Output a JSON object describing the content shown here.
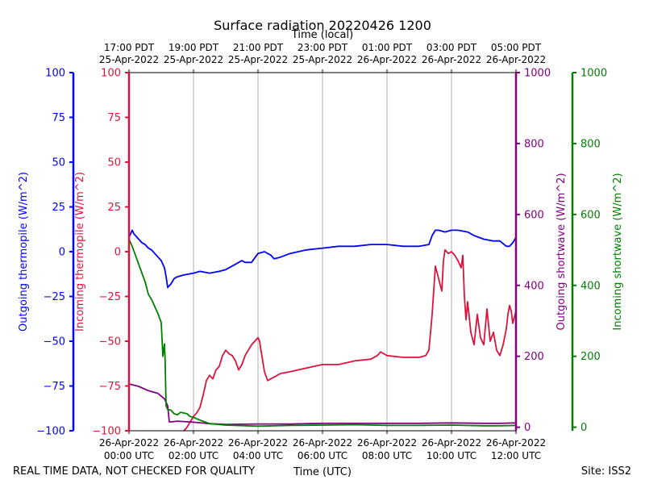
{
  "chart_data": {
    "type": "line",
    "title": "Surface radiation 20220426 1200",
    "top_axis_label": "Time (local)",
    "xlabel": "Time (UTC)",
    "footer_left": "REAL TIME DATA, NOT CHECKED FOR QUALITY",
    "footer_right": "Site: ISS2",
    "x_units": "hours since 2022-04-26 00:00 UTC",
    "xlim": [
      0,
      12
    ],
    "utc_ticks": [
      {
        "x": 0,
        "date": "26-Apr-2022",
        "time": "00:00 UTC"
      },
      {
        "x": 2,
        "date": "26-Apr-2022",
        "time": "02:00 UTC"
      },
      {
        "x": 4,
        "date": "26-Apr-2022",
        "time": "04:00 UTC"
      },
      {
        "x": 6,
        "date": "26-Apr-2022",
        "time": "06:00 UTC"
      },
      {
        "x": 8,
        "date": "26-Apr-2022",
        "time": "08:00 UTC"
      },
      {
        "x": 10,
        "date": "26-Apr-2022",
        "time": "10:00 UTC"
      },
      {
        "x": 12,
        "date": "26-Apr-2022",
        "time": "12:00 UTC"
      }
    ],
    "local_ticks": [
      {
        "x": 0,
        "time": "17:00 PDT",
        "date": "25-Apr-2022"
      },
      {
        "x": 2,
        "time": "19:00 PDT",
        "date": "25-Apr-2022"
      },
      {
        "x": 4,
        "time": "21:00 PDT",
        "date": "25-Apr-2022"
      },
      {
        "x": 6,
        "time": "23:00 PDT",
        "date": "25-Apr-2022"
      },
      {
        "x": 8,
        "time": "01:00 PDT",
        "date": "26-Apr-2022"
      },
      {
        "x": 10,
        "time": "03:00 PDT",
        "date": "26-Apr-2022"
      },
      {
        "x": 12,
        "time": "05:00 PDT",
        "date": "26-Apr-2022"
      }
    ],
    "vgrid": true,
    "axes": [
      {
        "id": "outgoing-thermopile",
        "label": "Outgoing thermopile (W/m^2)",
        "color": "#0000ff",
        "ylim": [
          -100,
          100
        ],
        "ticks": [
          -100,
          -75,
          -50,
          -25,
          0,
          25,
          50,
          75,
          100
        ],
        "side": "left-outer"
      },
      {
        "id": "incoming-thermopile",
        "label": "Incoming thermopile (W/m^2)",
        "color": "#dc143c",
        "ylim": [
          -100,
          100
        ],
        "ticks": [
          -100,
          -75,
          -50,
          -25,
          0,
          25,
          50,
          75,
          100
        ],
        "side": "left-inner"
      },
      {
        "id": "outgoing-shortwave",
        "label": "Outgoing shortwave (W/m^2)",
        "color": "#800080",
        "ylim": [
          -10,
          1000
        ],
        "ticks": [
          0,
          200,
          400,
          600,
          800,
          1000
        ],
        "side": "right-inner"
      },
      {
        "id": "incoming-shortwave",
        "label": "Incoming shortwave (W/m^2)",
        "color": "#008000",
        "ylim": [
          -10,
          1000
        ],
        "ticks": [
          0,
          200,
          400,
          600,
          800,
          1000
        ],
        "side": "right-outer"
      }
    ],
    "series": [
      {
        "name": "Outgoing thermopile",
        "axis": "outgoing-thermopile",
        "color": "#0000ff",
        "x": [
          0,
          0.1,
          0.15,
          0.2,
          0.3,
          0.4,
          0.5,
          0.6,
          0.7,
          0.9,
          1.0,
          1.1,
          1.15,
          1.2,
          1.3,
          1.4,
          1.5,
          1.7,
          2.0,
          2.2,
          2.5,
          2.8,
          3.0,
          3.2,
          3.4,
          3.5,
          3.6,
          3.8,
          4.0,
          4.2,
          4.4,
          4.5,
          4.7,
          5.0,
          5.5,
          6.0,
          6.5,
          7.0,
          7.5,
          8.0,
          8.5,
          9.0,
          9.3,
          9.4,
          9.5,
          9.6,
          9.8,
          10.0,
          10.2,
          10.5,
          10.7,
          11.0,
          11.3,
          11.5,
          11.7,
          11.8,
          11.9,
          12.0
        ],
        "y": [
          8,
          12,
          10,
          9,
          7,
          5,
          4,
          2,
          1,
          -3,
          -5,
          -9,
          -14,
          -20,
          -18,
          -15,
          -14,
          -13,
          -12,
          -11,
          -12,
          -11,
          -10,
          -8,
          -6,
          -5,
          -6,
          -6,
          -1,
          0,
          -2,
          -4,
          -3,
          -1,
          1,
          2,
          3,
          3,
          4,
          4,
          3,
          3,
          4,
          9,
          12,
          12,
          11,
          12,
          12,
          11,
          9,
          7,
          6,
          6,
          3,
          3,
          5,
          8
        ]
      },
      {
        "name": "Incoming thermopile",
        "axis": "incoming-thermopile",
        "color": "#dc143c",
        "x": [
          1.7,
          1.8,
          1.9,
          2.0,
          2.1,
          2.2,
          2.3,
          2.4,
          2.5,
          2.6,
          2.7,
          2.8,
          2.9,
          3.0,
          3.1,
          3.2,
          3.3,
          3.4,
          3.5,
          3.6,
          3.7,
          3.8,
          3.9,
          4.0,
          4.05,
          4.1,
          4.2,
          4.3,
          4.4,
          4.5,
          4.7,
          5.0,
          5.5,
          6.0,
          6.5,
          7.0,
          7.5,
          7.7,
          7.8,
          7.9,
          8.0,
          8.5,
          9.0,
          9.2,
          9.3,
          9.4,
          9.5,
          9.6,
          9.7,
          9.75,
          9.8,
          9.9,
          10.0,
          10.1,
          10.2,
          10.3,
          10.35,
          10.4,
          10.45,
          10.5,
          10.6,
          10.7,
          10.8,
          10.9,
          11.0,
          11.1,
          11.2,
          11.3,
          11.4,
          11.5,
          11.6,
          11.7,
          11.75,
          11.8,
          11.85,
          11.9,
          12.0
        ],
        "y": [
          -100,
          -98,
          -95,
          -92,
          -90,
          -87,
          -80,
          -72,
          -69,
          -71,
          -66,
          -64,
          -58,
          -55,
          -57,
          -58,
          -61,
          -66,
          -63,
          -58,
          -55,
          -52,
          -50,
          -48,
          -50,
          -56,
          -67,
          -72,
          -71,
          -70,
          -68,
          -67,
          -65,
          -63,
          -63,
          -61,
          -60,
          -58,
          -56,
          -57,
          -58,
          -59,
          -59,
          -58,
          -55,
          -35,
          -8,
          -15,
          -22,
          -5,
          1,
          -1,
          0,
          -2,
          -5,
          -9,
          -2,
          -25,
          -38,
          -28,
          -45,
          -52,
          -35,
          -48,
          -52,
          -32,
          -50,
          -45,
          -55,
          -58,
          -52,
          -43,
          -35,
          -30,
          -33,
          -40,
          -33
        ]
      },
      {
        "name": "Outgoing shortwave",
        "axis": "outgoing-shortwave",
        "color": "#800080",
        "x": [
          0,
          0.3,
          0.6,
          0.9,
          1.1,
          1.2,
          1.25,
          1.3,
          1.5,
          2.0,
          2.5,
          3.0,
          4.0,
          5.0,
          6.0,
          7.0,
          8.0,
          9.0,
          10.0,
          11.0,
          11.5,
          12.0
        ],
        "y": [
          122,
          115,
          103,
          95,
          80,
          60,
          15,
          15,
          17,
          14,
          10,
          8,
          9,
          9,
          11,
          11,
          11,
          11,
          12,
          11,
          11,
          12
        ]
      },
      {
        "name": "Incoming shortwave",
        "axis": "incoming-shortwave",
        "color": "#008000",
        "x": [
          0,
          0.1,
          0.2,
          0.3,
          0.4,
          0.5,
          0.6,
          0.7,
          0.8,
          0.9,
          1.0,
          1.05,
          1.1,
          1.12,
          1.15,
          1.2,
          1.3,
          1.4,
          1.5,
          1.6,
          1.7,
          1.8,
          1.9,
          2.0,
          2.2,
          2.5,
          3.0,
          4.0,
          5.0,
          6.0,
          7.0,
          8.0,
          9.0,
          10.0,
          11.0,
          11.5,
          12.0
        ],
        "y": [
          530,
          510,
          485,
          460,
          435,
          410,
          375,
          360,
          340,
          320,
          295,
          200,
          235,
          190,
          60,
          50,
          48,
          38,
          35,
          42,
          40,
          38,
          30,
          28,
          20,
          10,
          6,
          3,
          5,
          6,
          7,
          5,
          5,
          6,
          4,
          4,
          5
        ]
      }
    ]
  }
}
